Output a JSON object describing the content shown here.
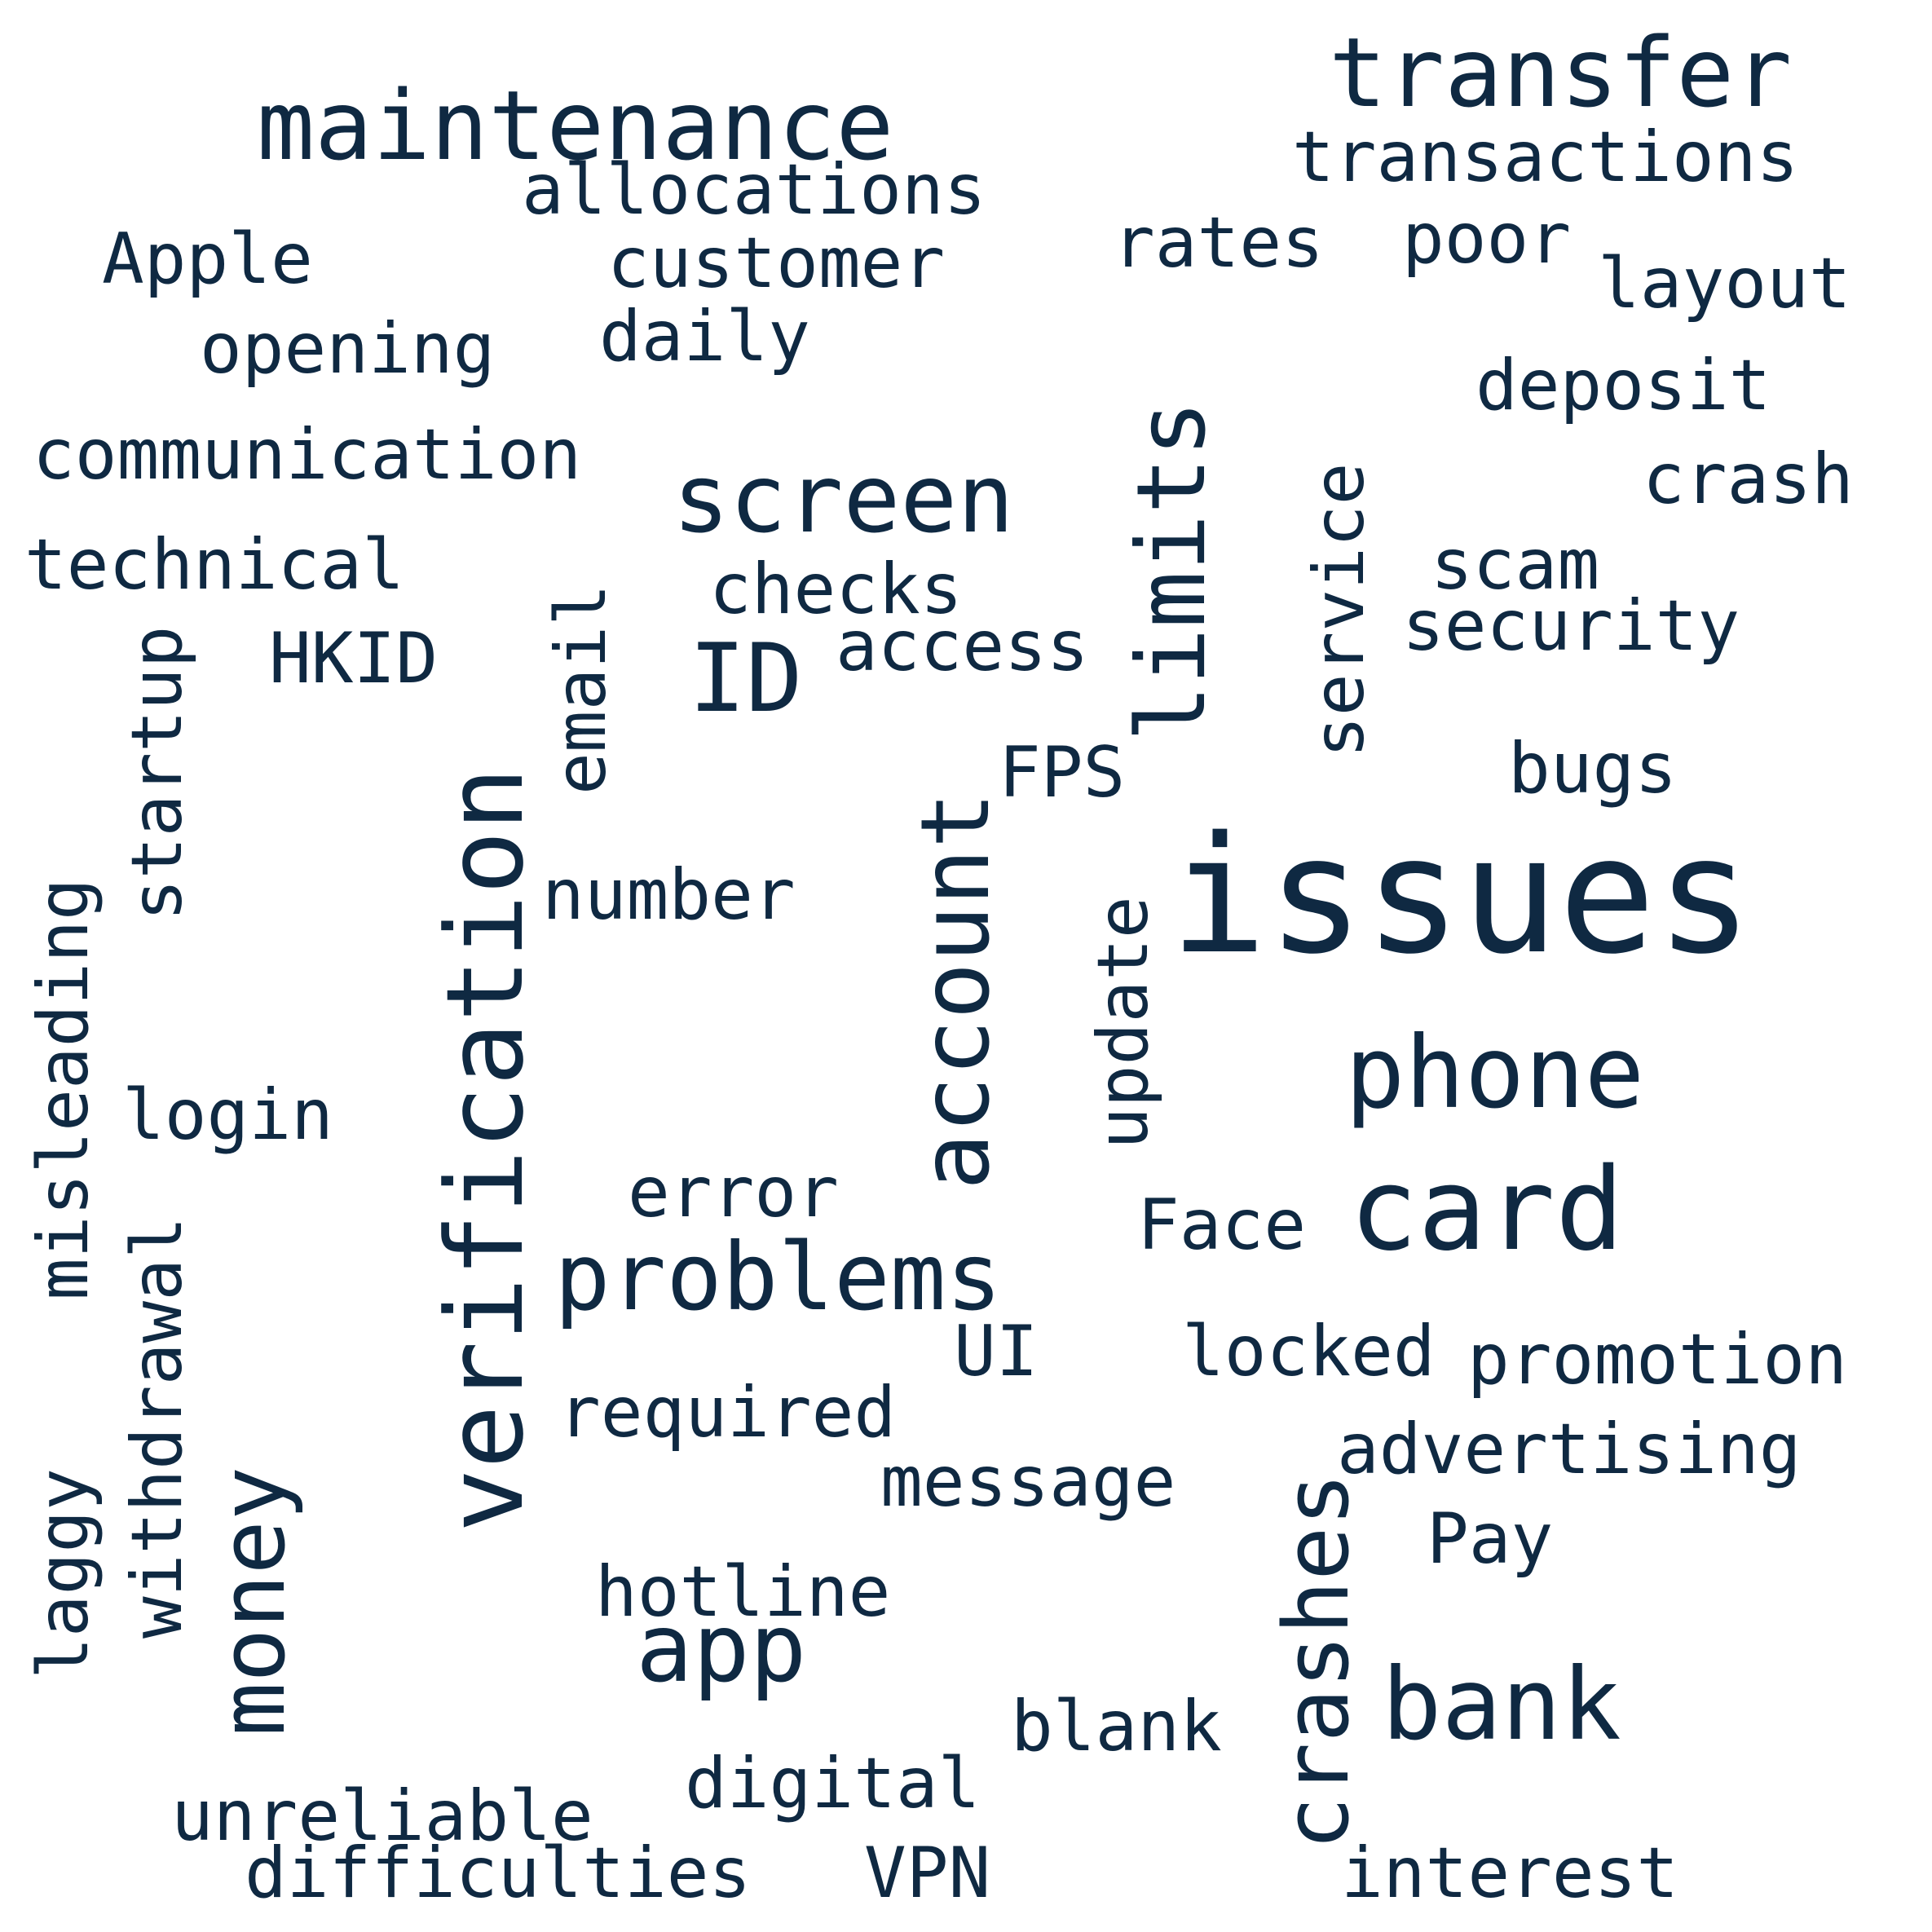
{
  "color": "#0f2942",
  "words": [
    {
      "text": "issues"
    },
    {
      "text": "verification"
    },
    {
      "text": "account"
    },
    {
      "text": "limits"
    },
    {
      "text": "transfer"
    },
    {
      "text": "maintenance"
    },
    {
      "text": "screen"
    },
    {
      "text": "problems"
    },
    {
      "text": "card"
    },
    {
      "text": "phone"
    },
    {
      "text": "bank"
    },
    {
      "text": "crashes"
    },
    {
      "text": "money"
    },
    {
      "text": "app"
    },
    {
      "text": "ID"
    },
    {
      "text": "transactions"
    },
    {
      "text": "allocations"
    },
    {
      "text": "customer"
    },
    {
      "text": "Apple"
    },
    {
      "text": "rates"
    },
    {
      "text": "poor"
    },
    {
      "text": "layout"
    },
    {
      "text": "opening"
    },
    {
      "text": "daily"
    },
    {
      "text": "deposit"
    },
    {
      "text": "communication"
    },
    {
      "text": "crash"
    },
    {
      "text": "service"
    },
    {
      "text": "technical"
    },
    {
      "text": "checks"
    },
    {
      "text": "scam"
    },
    {
      "text": "security"
    },
    {
      "text": "startup"
    },
    {
      "text": "HKID"
    },
    {
      "text": "email"
    },
    {
      "text": "access"
    },
    {
      "text": "FPS"
    },
    {
      "text": "bugs"
    },
    {
      "text": "misleading"
    },
    {
      "text": "number"
    },
    {
      "text": "update"
    },
    {
      "text": "login"
    },
    {
      "text": "withdrawal"
    },
    {
      "text": "error"
    },
    {
      "text": "Face"
    },
    {
      "text": "UI"
    },
    {
      "text": "locked"
    },
    {
      "text": "promotion"
    },
    {
      "text": "required"
    },
    {
      "text": "advertising"
    },
    {
      "text": "laggy"
    },
    {
      "text": "message"
    },
    {
      "text": "Pay"
    },
    {
      "text": "hotline"
    },
    {
      "text": "blank"
    },
    {
      "text": "digital"
    },
    {
      "text": "unreliable"
    },
    {
      "text": "difficulties"
    },
    {
      "text": "VPN"
    },
    {
      "text": "interest"
    }
  ]
}
